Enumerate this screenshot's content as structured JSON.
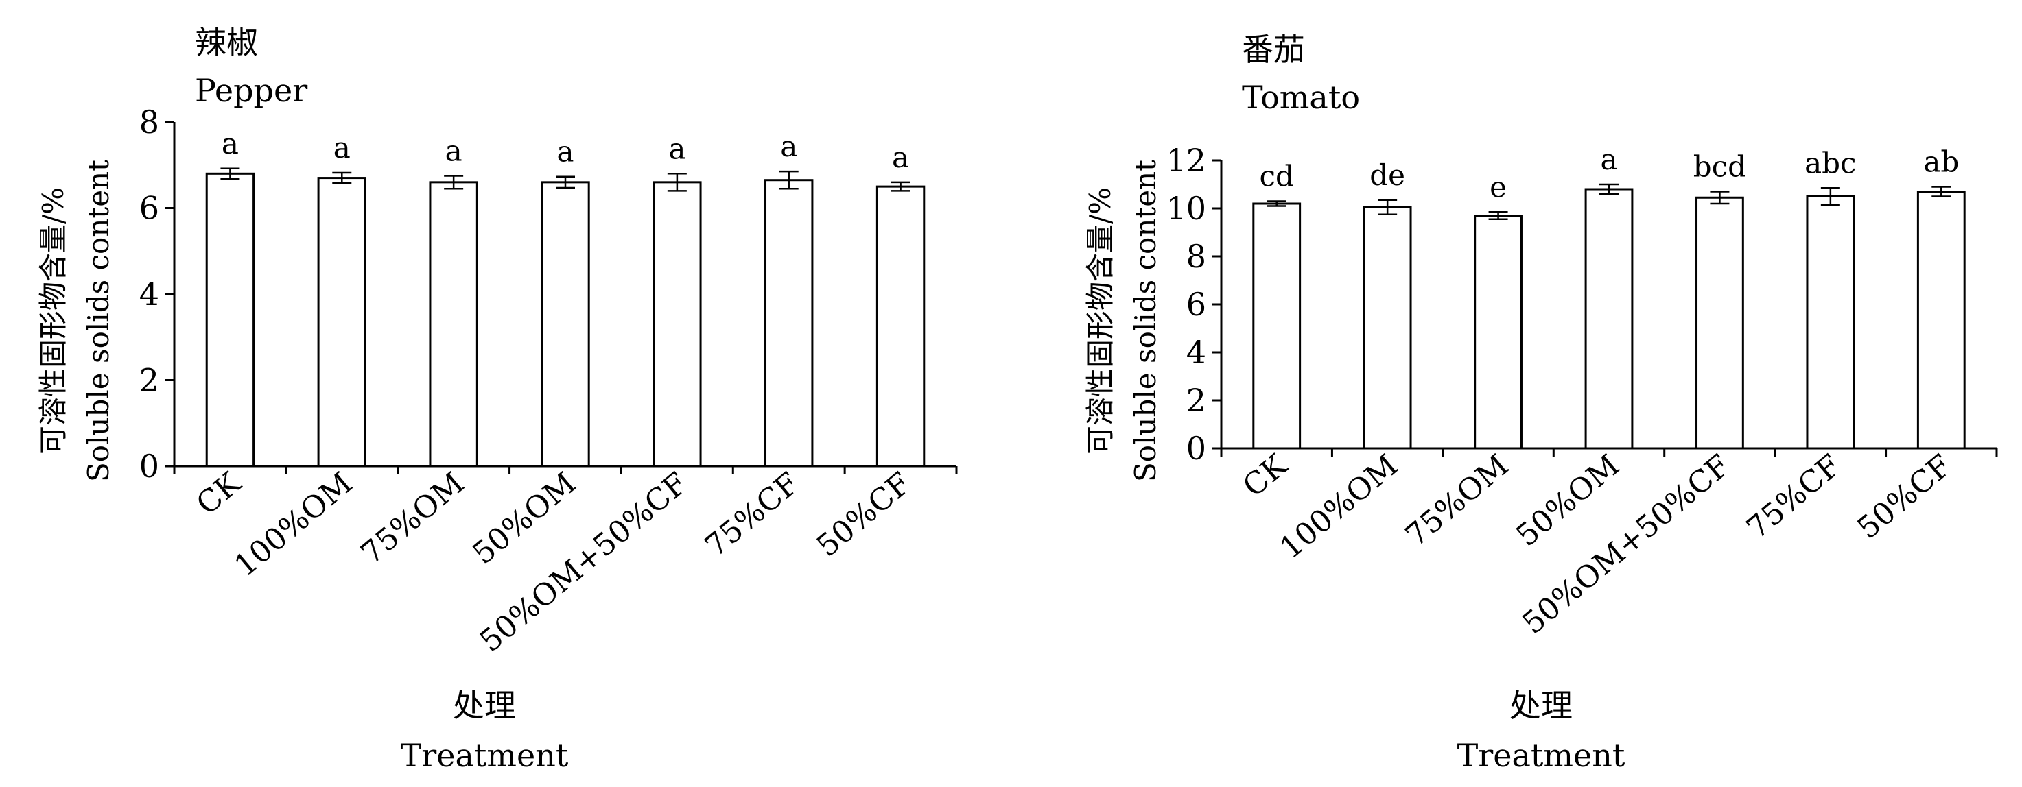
{
  "chart_data": [
    {
      "type": "bar",
      "title": "辣椒",
      "subtitle": "Pepper",
      "xlabel": "处理",
      "xlabel_en": "Treatment",
      "ylabel": "可溶性固形物含量/%",
      "ylabel_en": "Soluble solids content",
      "categories": [
        "CK",
        "100%OM",
        "75%OM",
        "50%OM",
        "50%OM+50%CF",
        "75%CF",
        "50%CF"
      ],
      "values": [
        6.8,
        6.7,
        6.6,
        6.6,
        6.6,
        6.65,
        6.5
      ],
      "errors": [
        0.12,
        0.12,
        0.15,
        0.13,
        0.2,
        0.2,
        0.1
      ],
      "significance": [
        "a",
        "a",
        "a",
        "a",
        "a",
        "a",
        "a"
      ],
      "ylim": [
        0,
        8
      ],
      "yticks": [
        0,
        2,
        4,
        6,
        8
      ],
      "grid": false,
      "bar_color": "#ffffff",
      "line_color": "#000000"
    },
    {
      "type": "bar",
      "title": "番茄",
      "subtitle": "Tomato",
      "xlabel": "处理",
      "xlabel_en": "Treatment",
      "ylabel": "可溶性固形物含量/%",
      "ylabel_en": "Soluble solids content",
      "categories": [
        "CK",
        "100%OM",
        "75%OM",
        "50%OM",
        "50%OM+50%CF",
        "75%CF",
        "50%CF"
      ],
      "values": [
        10.2,
        10.05,
        9.7,
        10.8,
        10.45,
        10.5,
        10.7
      ],
      "errors": [
        0.1,
        0.3,
        0.15,
        0.2,
        0.25,
        0.35,
        0.2
      ],
      "significance": [
        "cd",
        "de",
        "e",
        "a",
        "bcd",
        "abc",
        "ab"
      ],
      "ylim": [
        0,
        12
      ],
      "yticks": [
        0,
        2,
        4,
        6,
        8,
        10,
        12
      ],
      "grid": false,
      "bar_color": "#ffffff",
      "line_color": "#000000"
    }
  ]
}
